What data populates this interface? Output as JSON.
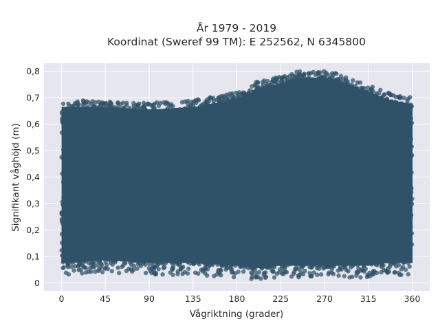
{
  "chart_data": {
    "type": "scatter",
    "title": "År 1979 - 2019",
    "subtitle": "Koordinat (Sweref 99 TM): E 252562, N 6345800",
    "xlabel": "Vågriktning (grader)",
    "ylabel": "Signifikant våghöjd (m)",
    "xlim": [
      -18,
      378
    ],
    "ylim": [
      -0.03,
      0.83
    ],
    "x_ticks": [
      0,
      45,
      90,
      135,
      180,
      225,
      270,
      315,
      360
    ],
    "x_tick_labels": [
      "0",
      "45",
      "90",
      "135",
      "180",
      "225",
      "270",
      "315",
      "360"
    ],
    "y_ticks": [
      0,
      0.1,
      0.2,
      0.3,
      0.4,
      0.5,
      0.6,
      0.7,
      0.8
    ],
    "y_tick_labels": [
      "0",
      "0,1",
      "0,2",
      "0,3",
      "0,4",
      "0,5",
      "0,6",
      "0,7",
      "0,8"
    ],
    "grid": true,
    "marker_color": "#2f5268",
    "plot_background": "#e5e6ee",
    "envelope": {
      "x": [
        0,
        45,
        90,
        135,
        180,
        200,
        225,
        240,
        255,
        270,
        285,
        300,
        315,
        335,
        360
      ],
      "y_max": [
        0.69,
        0.69,
        0.68,
        0.69,
        0.72,
        0.76,
        0.78,
        0.8,
        0.8,
        0.8,
        0.79,
        0.77,
        0.75,
        0.72,
        0.7
      ],
      "y_min": [
        0.03,
        0.04,
        0.03,
        0.03,
        0.02,
        0.01,
        0.02,
        0.02,
        0.02,
        0.02,
        0.02,
        0.02,
        0.02,
        0.03,
        0.03
      ]
    }
  }
}
